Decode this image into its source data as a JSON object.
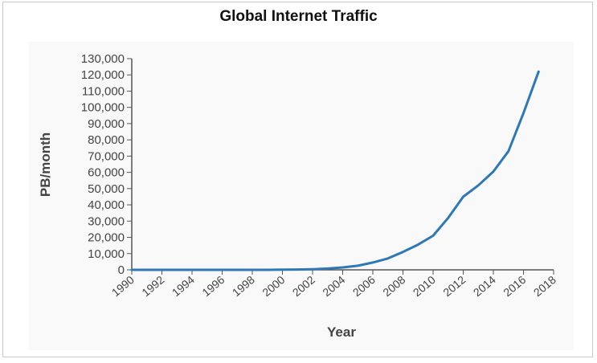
{
  "chart_data": {
    "type": "line",
    "title": "Global Internet Traffic",
    "xlabel": "Year",
    "ylabel": "PB/month",
    "xlim": [
      1990,
      2018
    ],
    "ylim": [
      0,
      130000
    ],
    "xticks": [
      1990,
      1992,
      1994,
      1996,
      1998,
      2000,
      2002,
      2004,
      2006,
      2008,
      2010,
      2012,
      2014,
      2016,
      2018
    ],
    "yticks": [
      0,
      10000,
      20000,
      30000,
      40000,
      50000,
      60000,
      70000,
      80000,
      90000,
      100000,
      110000,
      120000,
      130000
    ],
    "ytick_labels": [
      "0",
      "10,000",
      "20,000",
      "30,000",
      "40,000",
      "50,000",
      "60,000",
      "70,000",
      "80,000",
      "90,000",
      "100,000",
      "110,000",
      "120,000",
      "130,000"
    ],
    "grid": false,
    "series": [
      {
        "name": "Global Internet Traffic",
        "color": "#2f78b7",
        "x": [
          1990,
          1991,
          1992,
          1993,
          1994,
          1995,
          1996,
          1997,
          1998,
          1999,
          2000,
          2001,
          2002,
          2003,
          2004,
          2005,
          2006,
          2007,
          2008,
          2009,
          2010,
          2011,
          2012,
          2013,
          2014,
          2015,
          2016,
          2017
        ],
        "y": [
          0,
          0,
          0,
          0,
          0,
          0,
          0,
          0,
          0,
          0,
          100,
          200,
          400,
          800,
          1500,
          2500,
          4500,
          7000,
          11000,
          15500,
          21000,
          32000,
          45000,
          52000,
          60500,
          73000,
          96500,
          122000
        ]
      }
    ]
  }
}
